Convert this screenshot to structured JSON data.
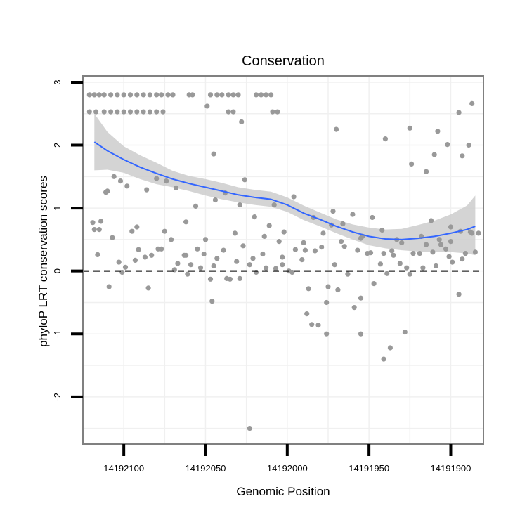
{
  "chart_data": {
    "type": "scatter",
    "title": "Conservation",
    "xlabel": "Genomic Position",
    "ylabel": "phyloP LRT conservation scores",
    "xlim": [
      14192125,
      14191880
    ],
    "ylim": [
      -2.75,
      3.1
    ],
    "x_reversed": true,
    "xticks": [
      14192100,
      14192050,
      14192000,
      14191950,
      14191900
    ],
    "xtick_labels": [
      "14192100",
      "14192050",
      "14192000",
      "14191950",
      "14191900"
    ],
    "yticks": [
      -2,
      -1,
      0,
      1,
      2,
      3
    ],
    "ytick_labels": [
      "-2",
      "-1",
      "0",
      "1",
      "2",
      "3"
    ],
    "grid": true,
    "reference_line": {
      "y": 0,
      "style": "dashed"
    },
    "colors": {
      "points": "#999999",
      "smooth": "#3366ff",
      "band": "#cccccc",
      "frame": "#808080"
    },
    "series": [
      {
        "name": "scores",
        "x": [
          14192121,
          14192118,
          14192115,
          14192112,
          14192108,
          14192104,
          14192100,
          14192096,
          14192092,
          14192088,
          14192084,
          14192080,
          14192077,
          14192073,
          14192070,
          14192060,
          14192058,
          14192047,
          14192043,
          14192040,
          14192036,
          14192033,
          14192030,
          14192019,
          14192016,
          14192013,
          14192010,
          14192121,
          14192117,
          14192112,
          14192108,
          14192104,
          14192100,
          14192096,
          14192092,
          14192088,
          14192084,
          14192080,
          14192076,
          14192049,
          14192036,
          14192033,
          14192009,
          14192006,
          14192118,
          14192114,
          14192110,
          14192106,
          14192102,
          14192098,
          14192092,
          14192086,
          14192080,
          14192074,
          14192068,
          14192062,
          14192056,
          14192050,
          14192044,
          14192038,
          14192032,
          14192026,
          14192020,
          14192014,
          14192008,
          14192002,
          14191996,
          14191990,
          14191984,
          14191978,
          14191972,
          14191966,
          14191960,
          14191954,
          14191948,
          14191942,
          14191936,
          14191930,
          14191924,
          14191918,
          14191912,
          14191906,
          14191900,
          14191894,
          14191888,
          14192119,
          14192115,
          14192111,
          14192107,
          14192103,
          14192099,
          14192095,
          14192091,
          14192087,
          14192083,
          14192079,
          14192075,
          14192071,
          14192067,
          14192063,
          14192059,
          14192055,
          14192051,
          14192047,
          14192043,
          14192039,
          14192035,
          14192031,
          14192027,
          14192023,
          14192019,
          14192015,
          14192011,
          14192007,
          14192003,
          14191999,
          14191995,
          14191991,
          14191987,
          14191983,
          14191979,
          14191975,
          14191971,
          14191967,
          14191963,
          14191959,
          14191955,
          14191951,
          14191947,
          14191943,
          14191939,
          14191935,
          14191931,
          14191927,
          14191923,
          14191919,
          14191915,
          14191911,
          14191907,
          14191903,
          14191899,
          14191895,
          14191891,
          14191887,
          14191883,
          14192116,
          14192109,
          14192101,
          14192093,
          14192085,
          14192077,
          14192069,
          14192061,
          14192053,
          14192045,
          14192037,
          14192029,
          14192021,
          14192013,
          14192005,
          14191997,
          14191989,
          14191981,
          14191973,
          14191965,
          14191957,
          14191949,
          14191941,
          14191933,
          14191925,
          14191917,
          14191909,
          14191901,
          14191893,
          14191885,
          14192062,
          14192046,
          14192023,
          14192003,
          14191985,
          14191970,
          14191955,
          14191940,
          14191925,
          14191915,
          14191910,
          14191902,
          14191893,
          14191889,
          14192045,
          14192029,
          14191988,
          14191976,
          14191969,
          14191941,
          14191937,
          14191928,
          14191908,
          14191895,
          14191887,
          14191955,
          14191976,
          14191900,
          14192028
        ],
        "y": [
          2.8,
          2.8,
          2.8,
          2.8,
          2.8,
          2.8,
          2.8,
          2.8,
          2.8,
          2.8,
          2.8,
          2.8,
          2.8,
          2.8,
          2.8,
          2.8,
          2.8,
          2.8,
          2.8,
          2.8,
          2.8,
          2.8,
          2.8,
          2.8,
          2.8,
          2.8,
          2.8,
          2.53,
          2.53,
          2.53,
          2.53,
          2.53,
          2.53,
          2.53,
          2.53,
          2.53,
          2.53,
          2.53,
          2.53,
          2.62,
          2.53,
          2.53,
          2.53,
          2.53,
          0.66,
          0.79,
          1.27,
          1.5,
          1.43,
          1.35,
          0.7,
          1.29,
          1.47,
          1.43,
          1.32,
          0.78,
          1.03,
          0.5,
          1.13,
          1.24,
          0.6,
          1.45,
          0.86,
          0.55,
          1.05,
          0.62,
          1.18,
          0.45,
          0.85,
          0.6,
          0.95,
          0.75,
          0.9,
          0.55,
          0.85,
          0.65,
          0.32,
          0.45,
          1.7,
          0.55,
          0.8,
          0.42,
          0.47,
          0.63,
          0.62,
          0.77,
          0.66,
          1.25,
          0.53,
          0.14,
          0.06,
          0.63,
          0.34,
          0.22,
          0.25,
          0.35,
          0.63,
          0.5,
          0.12,
          0.25,
          0.1,
          0.35,
          0.27,
          -0.13,
          0.2,
          0.33,
          -0.13,
          0.15,
          0.4,
          0.1,
          -0.02,
          0.27,
          0.72,
          0.04,
          0.22,
          0.0,
          0.34,
          0.18,
          -0.28,
          0.32,
          0.38,
          -0.25,
          0.1,
          0.47,
          -0.05,
          -0.58,
          0.52,
          0.28,
          -0.2,
          0.11,
          -0.04,
          0.25,
          0.12,
          0.05,
          0.28,
          0.28,
          0.42,
          0.3,
          0.5,
          0.35,
          0.14,
          -0.37,
          0.28,
          0.6,
          0.6,
          0.26,
          -0.25,
          -0.02,
          0.17,
          -0.27,
          0.35,
          0.02,
          -0.05,
          0.05,
          0.08,
          -0.12,
          -0.12,
          0.2,
          0.05,
          0.47,
          -0.02,
          0.33,
          -0.86,
          0.73,
          0.39,
          0.33,
          0.29,
          0.28,
          0.5,
          -0.05,
          0.05,
          0.08,
          0.23,
          0.19,
          0.3,
          0.25,
          -0.48,
          -2.5,
          0.1,
          -0.85,
          2.25,
          -1.0,
          2.1,
          2.27,
          1.58,
          1.85,
          2.01,
          1.83,
          2.0,
          1.86,
          1.05,
          -0.68,
          -1.0,
          -0.3,
          -1.4,
          -1.22,
          -0.97,
          2.22,
          2.52,
          2.66,
          -0.43,
          -0.5,
          0.7,
          2.37
        ]
      }
    ],
    "smooth": {
      "method": "loess",
      "x": [
        14192118,
        14192110,
        14192100,
        14192090,
        14192080,
        14192070,
        14192060,
        14192050,
        14192040,
        14192030,
        14192020,
        14192010,
        14192000,
        14191990,
        14191980,
        14191970,
        14191960,
        14191950,
        14191940,
        14191930,
        14191920,
        14191910,
        14191900,
        14191890,
        14191885
      ],
      "y": [
        2.05,
        1.91,
        1.77,
        1.65,
        1.55,
        1.46,
        1.39,
        1.33,
        1.27,
        1.21,
        1.17,
        1.14,
        1.05,
        0.92,
        0.82,
        0.71,
        0.62,
        0.55,
        0.51,
        0.5,
        0.52,
        0.55,
        0.6,
        0.66,
        0.71
      ],
      "lower": [
        1.6,
        1.61,
        1.56,
        1.46,
        1.38,
        1.33,
        1.27,
        1.2,
        1.14,
        1.09,
        1.05,
        1.02,
        0.94,
        0.81,
        0.71,
        0.6,
        0.5,
        0.41,
        0.36,
        0.33,
        0.31,
        0.3,
        0.3,
        0.28,
        0.25
      ],
      "upper": [
        2.5,
        2.21,
        1.98,
        1.84,
        1.72,
        1.59,
        1.51,
        1.46,
        1.4,
        1.33,
        1.29,
        1.26,
        1.17,
        1.04,
        0.93,
        0.82,
        0.74,
        0.69,
        0.66,
        0.67,
        0.73,
        0.8,
        0.9,
        1.04,
        1.2
      ]
    }
  }
}
